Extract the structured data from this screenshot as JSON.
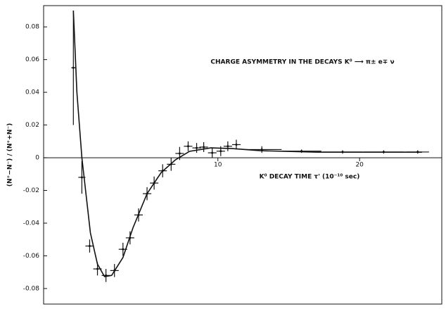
{
  "chart_data": {
    "type": "scatter",
    "title": "CHARGE ASYMMETRY IN THE DECAYS K⁰ ⟶ π± e∓ ν",
    "x_label": "K⁰ DECAY TIME τ' (10⁻¹⁰ sec)",
    "y_label": "(N⁺−N⁻) / (N⁺+N⁻)",
    "color": "#111111",
    "x": [
      -0.2,
      0.4,
      0.95,
      1.5,
      2.1,
      2.7,
      3.3,
      3.8,
      4.4,
      5.0,
      5.5,
      6.1,
      6.7,
      7.3,
      7.9,
      8.5,
      9.0,
      9.6,
      10.2,
      10.7,
      11.3,
      13.1,
      15.9,
      18.8,
      21.7,
      24.1
    ],
    "values": [
      0.055,
      -0.012,
      -0.054,
      -0.068,
      -0.072,
      -0.069,
      -0.056,
      -0.049,
      -0.035,
      -0.022,
      -0.0155,
      -0.008,
      -0.004,
      0.0026,
      0.007,
      0.006,
      0.0065,
      0.003,
      0.004,
      0.007,
      0.008,
      0.005,
      0.004,
      0.0035,
      0.0035,
      0.0035
    ],
    "yerr": [
      0.035,
      0.01,
      0.004,
      0.004,
      0.004,
      0.004,
      0.004,
      0.004,
      0.004,
      0.004,
      0.004,
      0.004,
      0.004,
      0.004,
      0.003,
      0.003,
      0.003,
      0.003,
      0.003,
      0.003,
      0.003,
      0.002,
      0.001,
      0.001,
      0.001,
      0.001
    ],
    "xerr": [
      0.15,
      0.25,
      0.3,
      0.3,
      0.3,
      0.3,
      0.3,
      0.3,
      0.3,
      0.3,
      0.3,
      0.3,
      0.3,
      0.3,
      0.3,
      0.3,
      0.3,
      0.3,
      0.3,
      0.3,
      0.3,
      1.4,
      1.4,
      1.4,
      1.4,
      0.8
    ],
    "fit": {
      "x": [
        -0.2,
        -0.1,
        0.05,
        0.4,
        1.0,
        1.5,
        2.0,
        2.5,
        3.3,
        4.0,
        5.0,
        6.0,
        7.0,
        8.0,
        9.5,
        11.0,
        13.0,
        17.0,
        24.4
      ],
      "values": [
        0.09,
        0.07,
        0.04,
        0.0,
        -0.046,
        -0.065,
        -0.0727,
        -0.072,
        -0.061,
        -0.043,
        -0.022,
        -0.009,
        -0.0013,
        0.0039,
        0.006,
        0.0056,
        0.0043,
        0.0034,
        0.0034
      ]
    },
    "xlim": [
      -2.3,
      25.8
    ],
    "ylim": [
      -0.0895,
      0.093
    ],
    "xticks": [
      10,
      20
    ],
    "yticks": [
      0.08,
      0.06,
      0.04,
      0.02,
      0,
      -0.02,
      -0.04,
      -0.06,
      -0.08
    ]
  }
}
